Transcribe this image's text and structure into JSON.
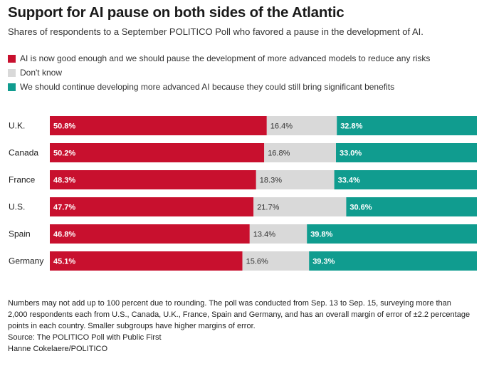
{
  "title": "Support for AI pause on both sides of the Atlantic",
  "subtitle": "Shares of respondents to a September POLITICO Poll who favored a pause in the development of AI.",
  "legend": [
    {
      "label": "AI is now good enough and we should pause the development of more advanced models to reduce any risks",
      "color": "#c8102e"
    },
    {
      "label": "Don't know",
      "color": "#d9d9d9"
    },
    {
      "label": "We should continue developing more advanced AI because they could still bring significant benefits",
      "color": "#109c8f"
    }
  ],
  "chart_data": {
    "type": "bar",
    "orientation": "horizontal",
    "stacked": true,
    "categories": [
      "U.K.",
      "Canada",
      "France",
      "U.S.",
      "Spain",
      "Germany"
    ],
    "series": [
      {
        "name": "AI is now good enough and we should pause the development of more advanced models to reduce any risks",
        "color": "#c8102e",
        "values": [
          50.8,
          50.2,
          48.3,
          47.7,
          46.8,
          45.1
        ],
        "labels": [
          "50.8%",
          "50.2%",
          "48.3%",
          "47.7%",
          "46.8%",
          "45.1%"
        ],
        "label_color": "#ffffff"
      },
      {
        "name": "Don't know",
        "color": "#d9d9d9",
        "values": [
          16.4,
          16.8,
          18.3,
          21.7,
          13.4,
          15.6
        ],
        "labels": [
          "16.4%",
          "16.8%",
          "18.3%",
          "21.7%",
          "13.4%",
          "15.6%"
        ],
        "label_color": "#333333"
      },
      {
        "name": "We should continue developing more advanced AI because they could still bring significant benefits",
        "color": "#109c8f",
        "values": [
          32.8,
          33.0,
          33.4,
          30.6,
          39.8,
          39.3
        ],
        "labels": [
          "32.8%",
          "33.0%",
          "33.4%",
          "30.6%",
          "39.8%",
          "39.3%"
        ],
        "label_color": "#ffffff"
      }
    ],
    "legend_position": "top-left",
    "grid": false
  },
  "notes": {
    "lines": [
      "Numbers may not add up to 100 percent due to rounding. The poll was conducted from Sep. 13 to Sep. 15, surveying more than",
      "2,000 respondents each from U.S., Canada, U.K., France, Spain and Germany, and has an overall margin of error of ±2.2 percentage",
      "points in each country. Smaller subgroups have higher margins of error."
    ],
    "source": "Source: The POLITICO Poll with Public First",
    "credit": "Hanne Cokelaere/POLITICO"
  }
}
